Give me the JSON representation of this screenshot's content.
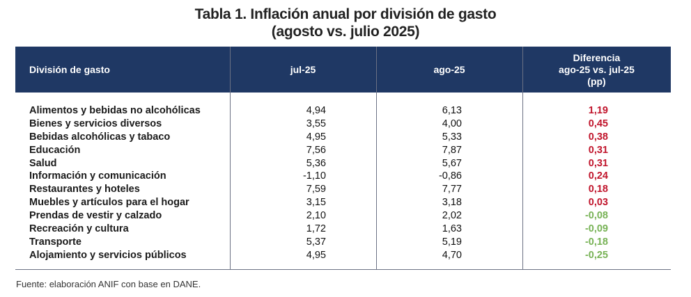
{
  "title": {
    "line1": "Tabla 1. Inflación anual por división de gasto",
    "line2": "(agosto vs. julio 2025)"
  },
  "colors": {
    "header_bg": "#1f3864",
    "positive": "#c0142b",
    "negative": "#77b255"
  },
  "table": {
    "headers": {
      "division": "División de gasto",
      "jul": "jul-25",
      "ago": "ago-25",
      "diff1": "Diferencia",
      "diff2": "ago-25 vs. jul-25",
      "diff3": "(pp)"
    },
    "rows": [
      {
        "division": "Alimentos y bebidas no alcohólicas",
        "jul": "4,94",
        "ago": "6,13",
        "diff": "1,19"
      },
      {
        "division": "Bienes y servicios diversos",
        "jul": "3,55",
        "ago": "4,00",
        "diff": "0,45"
      },
      {
        "division": "Bebidas alcohólicas y tabaco",
        "jul": "4,95",
        "ago": "5,33",
        "diff": "0,38"
      },
      {
        "division": "Educación",
        "jul": "7,56",
        "ago": "7,87",
        "diff": "0,31"
      },
      {
        "division": "Salud",
        "jul": "5,36",
        "ago": "5,67",
        "diff": "0,31"
      },
      {
        "division": "Información y comunicación",
        "jul": "-1,10",
        "ago": "-0,86",
        "diff": "0,24"
      },
      {
        "division": "Restaurantes y hoteles",
        "jul": "7,59",
        "ago": "7,77",
        "diff": "0,18"
      },
      {
        "division": "Muebles y artículos para el hogar",
        "jul": "3,15",
        "ago": "3,18",
        "diff": "0,03"
      },
      {
        "division": "Prendas de vestir y calzado",
        "jul": "2,10",
        "ago": "2,02",
        "diff": "-0,08"
      },
      {
        "division": "Recreación y cultura",
        "jul": "1,72",
        "ago": "1,63",
        "diff": "-0,09"
      },
      {
        "division": "Transporte",
        "jul": "5,37",
        "ago": "5,19",
        "diff": "-0,18"
      },
      {
        "division": "Alojamiento y servicios públicos",
        "jul": "4,95",
        "ago": "4,70",
        "diff": "-0,25"
      }
    ]
  },
  "footer": "Fuente: elaboración ANIF con base en DANE."
}
